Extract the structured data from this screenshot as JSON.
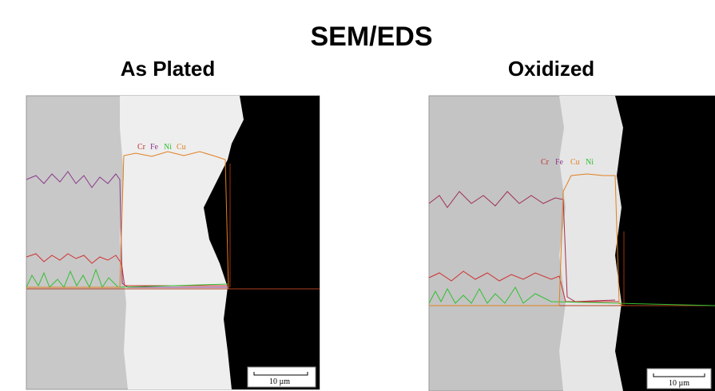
{
  "title": "SEM/EDS",
  "panels": [
    {
      "label": "As Plated",
      "legend": [
        "Cr",
        "Fe",
        "Ni",
        "Cu"
      ],
      "scale_bar": "10 µm"
    },
    {
      "label": "Oxidized",
      "legend": [
        "Cr",
        "Fe",
        "Cu",
        "Ni"
      ],
      "scale_bar": "10 µm"
    }
  ]
}
